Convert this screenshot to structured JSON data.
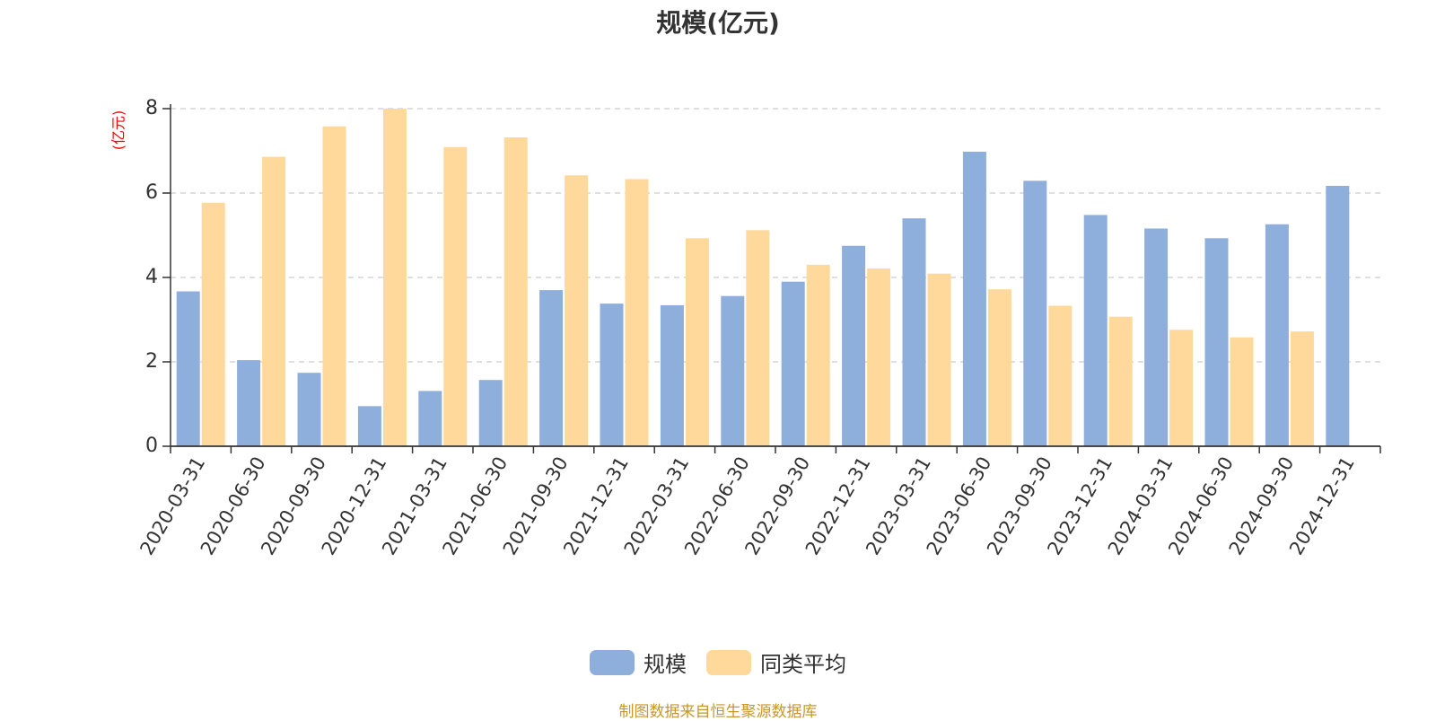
{
  "source_note": "制图数据来自恒生聚源数据库",
  "chart_data": {
    "type": "bar",
    "title": "规模(亿元)",
    "ylabel": "(亿元)",
    "xlabel": "",
    "ylim": [
      0,
      8
    ],
    "yticks": [
      "0",
      "2",
      "4",
      "6",
      "8"
    ],
    "grid": true,
    "legend_position": "bottom-center",
    "categories": [
      "2020-03-31",
      "2020-06-30",
      "2020-09-30",
      "2020-12-31",
      "2021-03-31",
      "2021-06-30",
      "2021-09-30",
      "2021-12-31",
      "2022-03-31",
      "2022-06-30",
      "2022-09-30",
      "2022-12-31",
      "2023-03-31",
      "2023-06-30",
      "2023-09-30",
      "2023-12-31",
      "2024-03-31",
      "2024-06-30",
      "2024-09-30",
      "2024-12-31"
    ],
    "series": [
      {
        "name": "规模",
        "color": "#8eaedb",
        "values": [
          3.67,
          2.04,
          1.74,
          0.95,
          1.31,
          1.57,
          3.7,
          3.38,
          3.34,
          3.56,
          3.9,
          4.75,
          5.4,
          6.98,
          6.29,
          5.48,
          5.16,
          4.93,
          5.26,
          6.17
        ]
      },
      {
        "name": "同类平均",
        "color": "#ffd99b",
        "values": [
          5.77,
          6.86,
          7.58,
          8.0,
          7.09,
          7.32,
          6.42,
          6.33,
          4.93,
          5.12,
          4.3,
          4.21,
          4.09,
          3.72,
          3.33,
          3.07,
          2.76,
          2.58,
          2.72,
          null
        ]
      }
    ]
  }
}
